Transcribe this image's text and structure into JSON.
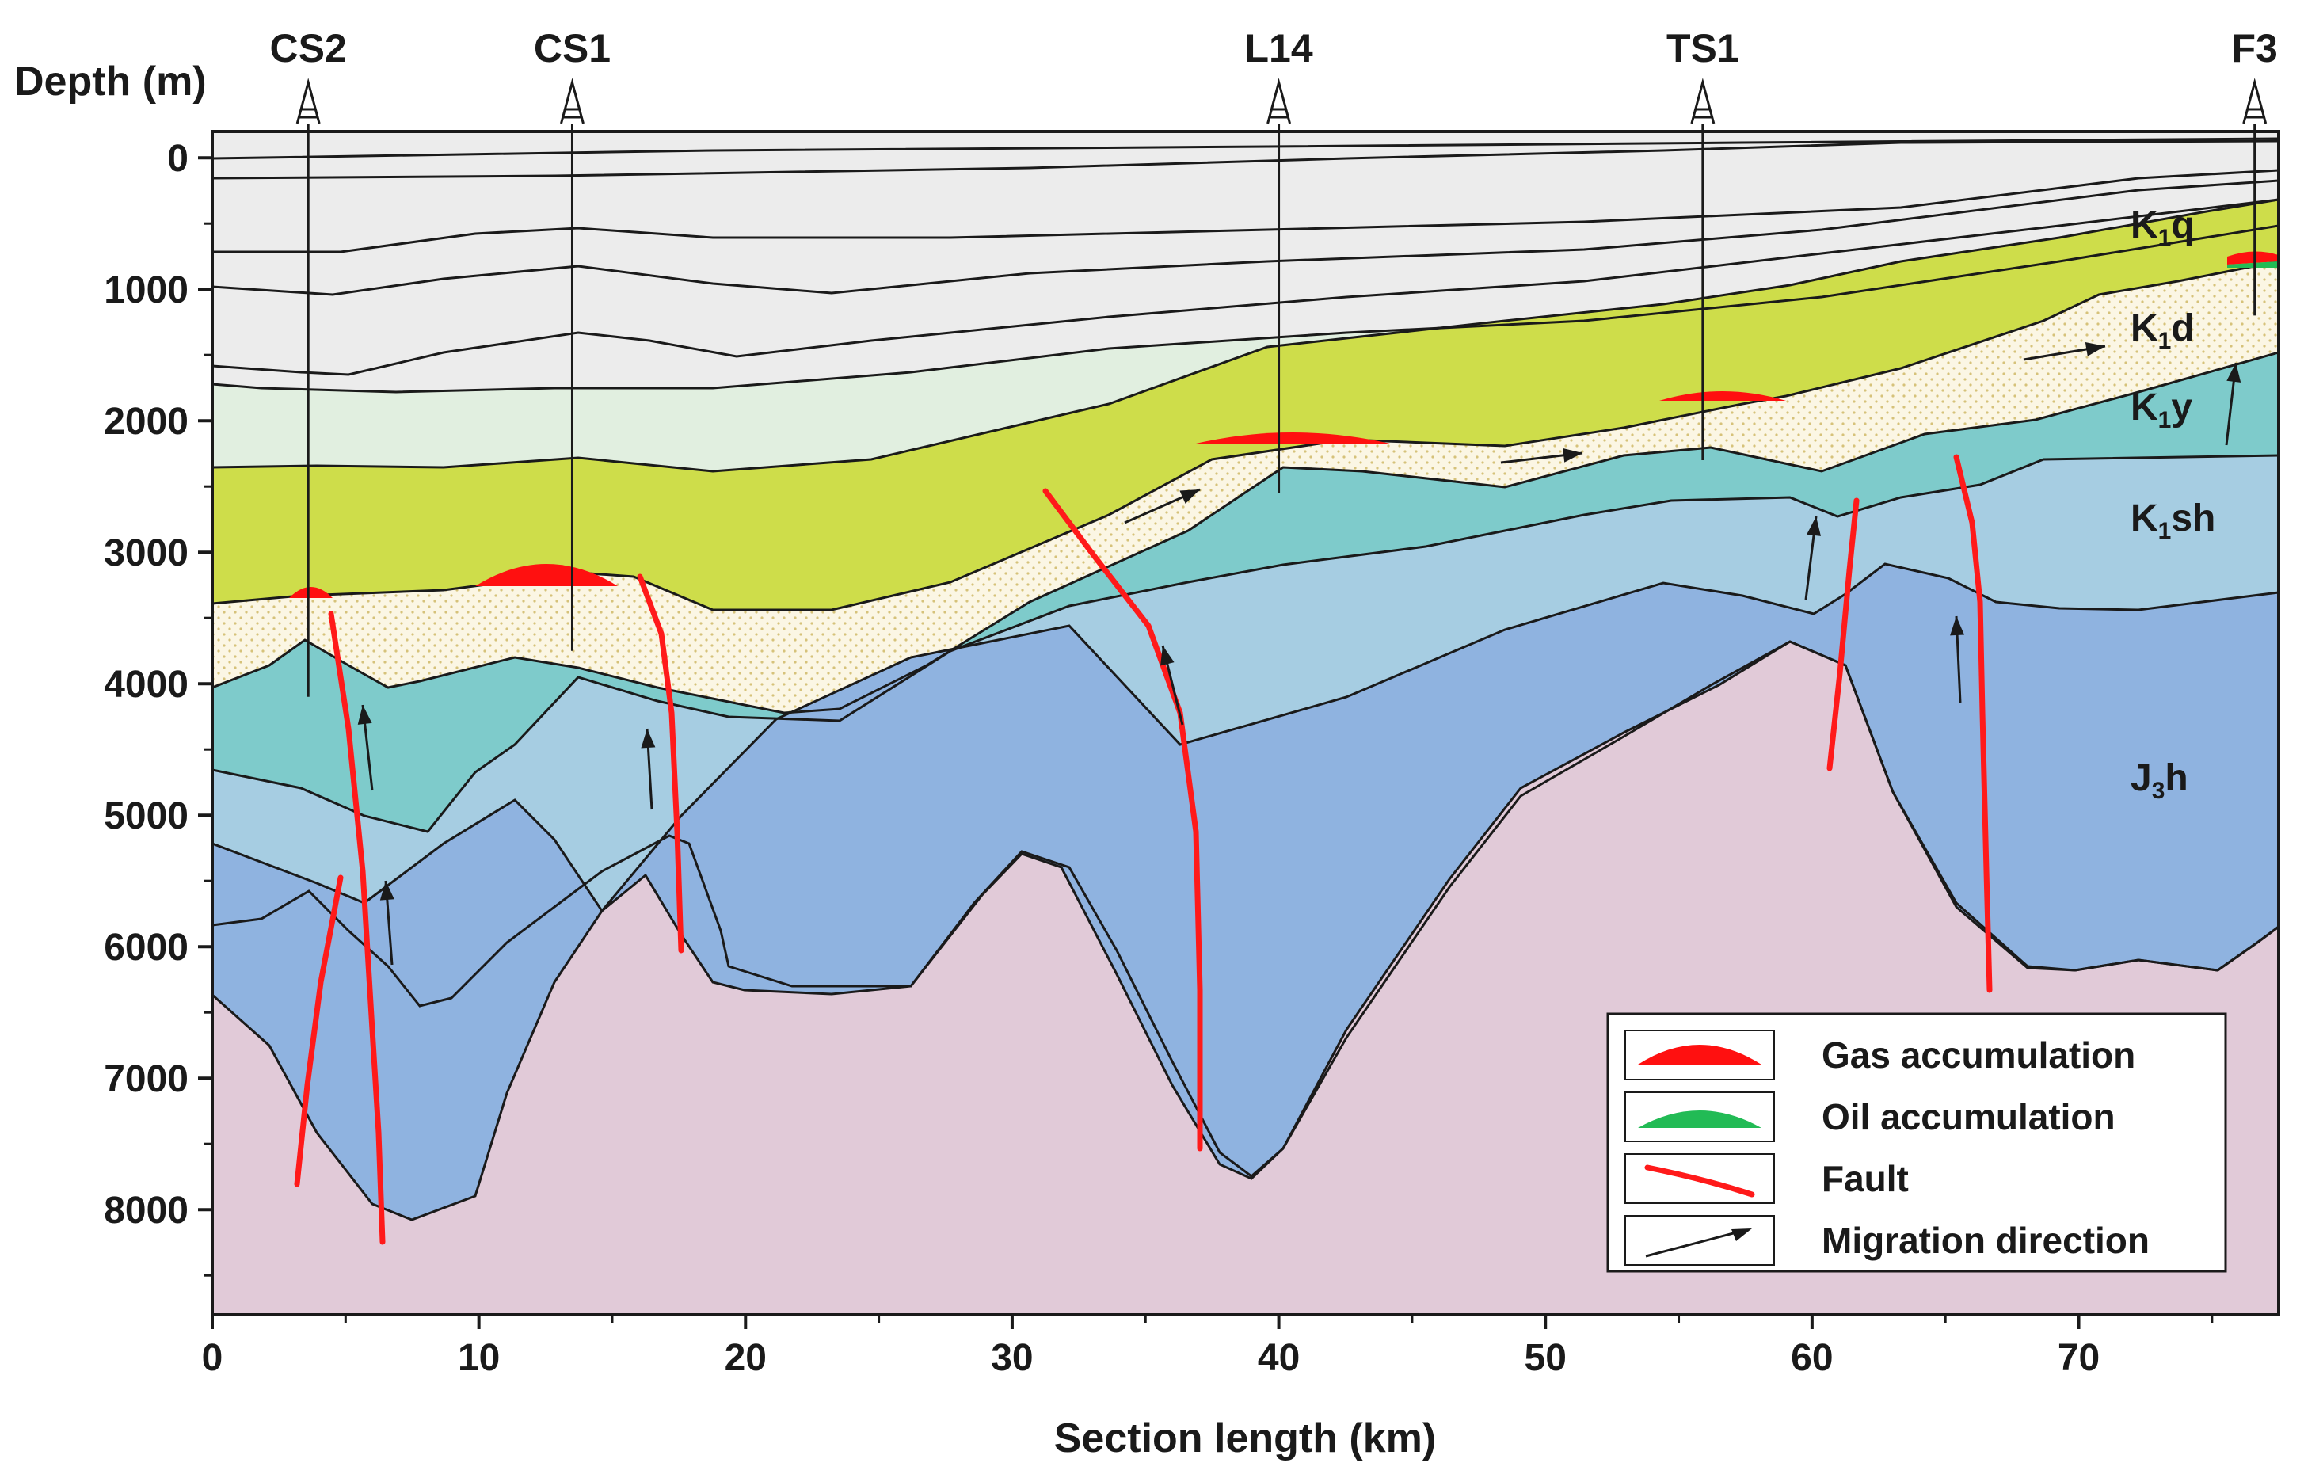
{
  "chart_data": {
    "type": "geological_cross_section",
    "ylabel": "Depth (m)",
    "xlabel": "Section length (km)",
    "x_range": [
      0,
      77.5
    ],
    "y_range": [
      -200,
      8800
    ],
    "x_ticks": [
      "0",
      "10",
      "20",
      "30",
      "40",
      "50",
      "60",
      "70"
    ],
    "y_ticks": [
      "0",
      "1000",
      "2000",
      "3000",
      "4000",
      "5000",
      "6000",
      "7000",
      "8000"
    ],
    "wells": [
      {
        "name": "CS2",
        "x_km": 3.6,
        "td_m": 4100
      },
      {
        "name": "CS1",
        "x_km": 13.5,
        "td_m": 3750
      },
      {
        "name": "L14",
        "x_km": 40.0,
        "td_m": 2550
      },
      {
        "name": "TS1",
        "x_km": 55.9,
        "td_m": 2300
      },
      {
        "name": "F3",
        "x_km": 76.6,
        "td_m": 1200
      }
    ],
    "units": [
      {
        "main": "K",
        "sub": "1",
        "suffix": "q"
      },
      {
        "main": "K",
        "sub": "1",
        "suffix": "d"
      },
      {
        "main": "K",
        "sub": "1",
        "suffix": "y"
      },
      {
        "main": "K",
        "sub": "1",
        "suffix": "sh"
      },
      {
        "main": "J",
        "sub": "3",
        "suffix": "h"
      }
    ],
    "colors": {
      "upper": "#ececec",
      "pale_green": "#e1efe0",
      "k1q": "#cedd4a",
      "k1d": "#fbf6e4",
      "k1d_dots": "#d6c27a",
      "k1y": "#7ecbcb",
      "k1sh": "#a6cde2",
      "j3h": "#8fb3e0",
      "basement": "#e1cad8",
      "gas": "#ff1010",
      "oil": "#22bb55",
      "fault": "#ff1a1a",
      "line": "#1a1a1a"
    },
    "legend": [
      {
        "key": "gas",
        "label": "Gas accumulation"
      },
      {
        "key": "oil",
        "label": "Oil accumulation"
      },
      {
        "key": "fault",
        "label": "Fault"
      },
      {
        "key": "arrow",
        "label": "Migration direction"
      }
    ]
  }
}
